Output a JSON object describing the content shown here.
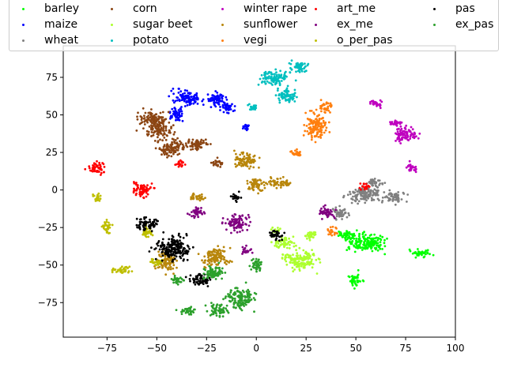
{
  "chart_data": {
    "type": "scatter",
    "title": "",
    "xlabel": "",
    "ylabel": "",
    "xlim": [
      -97,
      100
    ],
    "ylim": [
      -98,
      96
    ],
    "x_ticks": [
      -75,
      -50,
      -25,
      0,
      25,
      50,
      75,
      100
    ],
    "y_ticks": [
      -75,
      -50,
      -25,
      0,
      25,
      50,
      75
    ],
    "x_tick_labels": [
      "−75",
      "−50",
      "−25",
      "0",
      "25",
      "50",
      "75",
      "100"
    ],
    "y_tick_labels": [
      "−75",
      "−50",
      "−25",
      "0",
      "25",
      "50",
      "75"
    ],
    "grid": false,
    "legend_position": "top",
    "series": [
      {
        "name": "barley",
        "color": "#00ff00",
        "clusters": [
          [
            55,
            -35,
            12,
            7
          ],
          [
            50,
            -60,
            4,
            5
          ],
          [
            82,
            -42,
            6,
            3
          ],
          [
            45,
            -30,
            5,
            4
          ]
        ]
      },
      {
        "name": "maize",
        "color": "#0000ff",
        "clusters": [
          [
            -35,
            62,
            8,
            6
          ],
          [
            -20,
            60,
            6,
            5
          ],
          [
            -15,
            55,
            5,
            4
          ],
          [
            -40,
            50,
            5,
            5
          ],
          [
            -5,
            42,
            3,
            3
          ]
        ]
      },
      {
        "name": "wheat",
        "color": "#808080",
        "clusters": [
          [
            55,
            -3,
            10,
            6
          ],
          [
            70,
            -5,
            6,
            4
          ],
          [
            42,
            -15,
            5,
            4
          ],
          [
            60,
            5,
            5,
            3
          ]
        ]
      },
      {
        "name": "corn",
        "color": "#8b4513",
        "clusters": [
          [
            -52,
            47,
            8,
            6
          ],
          [
            -43,
            28,
            8,
            6
          ],
          [
            -30,
            30,
            6,
            5
          ],
          [
            -48,
            40,
            7,
            6
          ],
          [
            -20,
            18,
            4,
            3
          ]
        ]
      },
      {
        "name": "sugar beet",
        "color": "#adff2f",
        "clusters": [
          [
            22,
            -47,
            10,
            7
          ],
          [
            15,
            -35,
            6,
            4
          ],
          [
            27,
            -30,
            4,
            3
          ],
          [
            10,
            -28,
            3,
            3
          ]
        ]
      },
      {
        "name": "potato",
        "color": "#00bfbf",
        "clusters": [
          [
            10,
            75,
            8,
            6
          ],
          [
            22,
            82,
            6,
            4
          ],
          [
            15,
            62,
            6,
            5
          ],
          [
            -2,
            55,
            3,
            3
          ]
        ]
      },
      {
        "name": "winter rape",
        "color": "#bf00bf",
        "clusters": [
          [
            75,
            37,
            7,
            6
          ],
          [
            60,
            58,
            4,
            3
          ],
          [
            78,
            15,
            3,
            4
          ],
          [
            70,
            45,
            4,
            3
          ]
        ]
      },
      {
        "name": "sunflower",
        "color": "#b8860b",
        "clusters": [
          [
            -5,
            20,
            7,
            6
          ],
          [
            0,
            3,
            6,
            5
          ],
          [
            12,
            5,
            6,
            4
          ],
          [
            -30,
            -5,
            5,
            3
          ],
          [
            -20,
            -45,
            8,
            7
          ],
          [
            -45,
            -48,
            6,
            7
          ]
        ]
      },
      {
        "name": "vegi",
        "color": "#ff7f0e",
        "clusters": [
          [
            30,
            42,
            6,
            10
          ],
          [
            35,
            55,
            4,
            4
          ],
          [
            20,
            25,
            4,
            3
          ],
          [
            38,
            -28,
            3,
            3
          ]
        ]
      },
      {
        "name": "art_me",
        "color": "#ff0000",
        "clusters": [
          [
            -80,
            15,
            5,
            5
          ],
          [
            -57,
            0,
            6,
            5
          ],
          [
            -38,
            17,
            3,
            3
          ],
          [
            55,
            2,
            3,
            3
          ]
        ]
      },
      {
        "name": "ex_me",
        "color": "#800080",
        "clusters": [
          [
            -10,
            -22,
            7,
            6
          ],
          [
            -30,
            -15,
            5,
            4
          ],
          [
            35,
            -15,
            5,
            4
          ],
          [
            -5,
            -40,
            3,
            3
          ]
        ]
      },
      {
        "name": "o_per_pas",
        "color": "#bfbf00",
        "clusters": [
          [
            -75,
            -25,
            3,
            5
          ],
          [
            -68,
            -53,
            6,
            3
          ],
          [
            -80,
            -5,
            2,
            4
          ],
          [
            -55,
            -28,
            4,
            4
          ],
          [
            -50,
            -48,
            4,
            3
          ]
        ]
      },
      {
        "name": "pas",
        "color": "#000000",
        "clusters": [
          [
            -42,
            -38,
            10,
            9
          ],
          [
            -55,
            -22,
            6,
            5
          ],
          [
            -28,
            -60,
            6,
            5
          ],
          [
            10,
            -30,
            4,
            4
          ],
          [
            -10,
            -5,
            3,
            3
          ]
        ]
      },
      {
        "name": "ex_pas",
        "color": "#2ca02c",
        "clusters": [
          [
            -8,
            -72,
            8,
            8
          ],
          [
            -20,
            -80,
            6,
            5
          ],
          [
            -35,
            -80,
            5,
            3
          ],
          [
            -22,
            -55,
            6,
            6
          ],
          [
            0,
            -50,
            4,
            5
          ],
          [
            -40,
            -60,
            4,
            4
          ]
        ]
      }
    ]
  }
}
